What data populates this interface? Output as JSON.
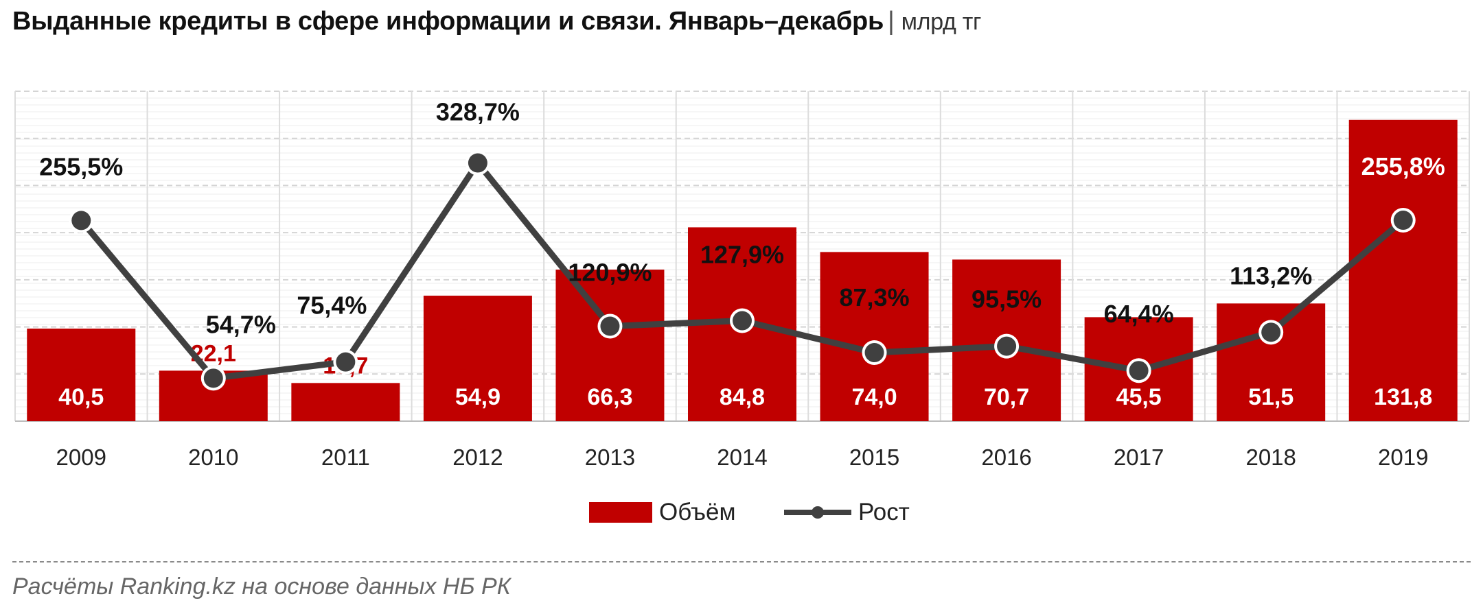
{
  "title": "Выданные кредиты в сфере информации и связи. Январь–декабрь",
  "title_separator": "|",
  "unit": "млрд тг",
  "source": "Расчёты Ranking.kz на основе данных НБ РК",
  "colors": {
    "bar": "#c00000",
    "line": "#404040",
    "bar_label_inside": "#ffffff",
    "bar_label_outside": "#c00000",
    "pct_label": "#111111"
  },
  "chart_data": {
    "type": "bar",
    "categories": [
      "2009",
      "2010",
      "2011",
      "2012",
      "2013",
      "2014",
      "2015",
      "2016",
      "2017",
      "2018",
      "2019"
    ],
    "series": [
      {
        "name": "Объём",
        "type": "bar",
        "values": [
          40.5,
          22.1,
          16.7,
          54.9,
          66.3,
          84.8,
          74.0,
          70.7,
          45.5,
          51.5,
          131.8
        ],
        "labels": [
          "40,5",
          "22,1",
          "16,7",
          "54,9",
          "66,3",
          "84,8",
          "74,0",
          "70,7",
          "45,5",
          "51,5",
          "131,8"
        ]
      },
      {
        "name": "Рост",
        "type": "line",
        "values": [
          255.5,
          54.7,
          75.4,
          328.7,
          120.9,
          127.9,
          87.3,
          95.5,
          64.4,
          113.2,
          255.8
        ],
        "labels": [
          "255,5%",
          "54,7%",
          "75,4%",
          "328,7%",
          "120,9%",
          "127,9%",
          "87,3%",
          "95,5%",
          "64,4%",
          "113,2%",
          "255,8%"
        ]
      }
    ],
    "legend": {
      "position": "bottom",
      "entries": [
        "Объём",
        "Рост"
      ]
    },
    "grid": true
  }
}
